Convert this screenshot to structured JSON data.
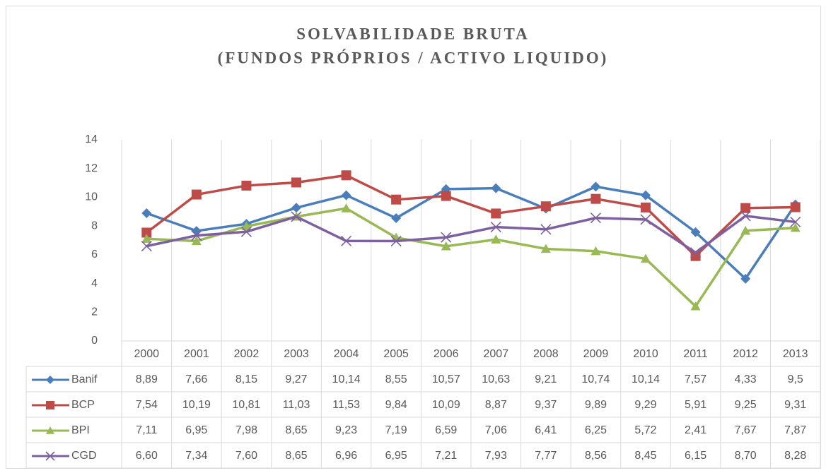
{
  "chart_data": {
    "type": "line",
    "title": [
      "SOLVABILIDADE BRUTA",
      "(FUNDOS PRÓPRIOS / ACTIVO LIQUIDO)"
    ],
    "categories": [
      "2000",
      "2001",
      "2002",
      "2003",
      "2004",
      "2005",
      "2006",
      "2007",
      "2008",
      "2009",
      "2010",
      "2011",
      "2012",
      "2013"
    ],
    "ylim": [
      0,
      14
    ],
    "yticks": [
      0,
      2,
      4,
      6,
      8,
      10,
      12,
      14
    ],
    "grid": true,
    "series": [
      {
        "name": "Banif",
        "color": "#4a7ebb",
        "marker": "diamond",
        "values": [
          8.89,
          7.66,
          8.15,
          9.27,
          10.14,
          8.55,
          10.57,
          10.63,
          9.21,
          10.74,
          10.14,
          7.57,
          4.33,
          9.5
        ],
        "value_labels": [
          "8,89",
          "7,66",
          "8,15",
          "9,27",
          "10,14",
          "8,55",
          "10,57",
          "10,63",
          "9,21",
          "10,74",
          "10,14",
          "7,57",
          "4,33",
          "9,5"
        ]
      },
      {
        "name": "BCP",
        "color": "#be4b48",
        "marker": "square",
        "values": [
          7.54,
          10.19,
          10.81,
          11.03,
          11.53,
          9.84,
          10.09,
          8.87,
          9.37,
          9.89,
          9.29,
          5.91,
          9.25,
          9.31
        ],
        "value_labels": [
          "7,54",
          "10,19",
          "10,81",
          "11,03",
          "11,53",
          "9,84",
          "10,09",
          "8,87",
          "9,37",
          "9,89",
          "9,29",
          "5,91",
          "9,25",
          "9,31"
        ]
      },
      {
        "name": "BPI",
        "color": "#98b954",
        "marker": "triangle",
        "values": [
          7.11,
          6.95,
          7.98,
          8.65,
          9.23,
          7.19,
          6.59,
          7.06,
          6.41,
          6.25,
          5.72,
          2.41,
          7.67,
          7.87
        ],
        "value_labels": [
          "7,11",
          "6,95",
          "7,98",
          "8,65",
          "9,23",
          "7,19",
          "6,59",
          "7,06",
          "6,41",
          "6,25",
          "5,72",
          "2,41",
          "7,67",
          "7,87"
        ]
      },
      {
        "name": "CGD",
        "color": "#7d60a0",
        "marker": "x",
        "values": [
          6.6,
          7.34,
          7.6,
          8.65,
          6.96,
          6.95,
          7.21,
          7.93,
          7.77,
          8.56,
          8.45,
          6.15,
          8.7,
          8.28
        ],
        "value_labels": [
          "6,60",
          "7,34",
          "7,60",
          "8,65",
          "6,96",
          "6,95",
          "7,21",
          "7,93",
          "7,77",
          "8,56",
          "8,45",
          "6,15",
          "8,70",
          "8,28"
        ]
      }
    ]
  }
}
